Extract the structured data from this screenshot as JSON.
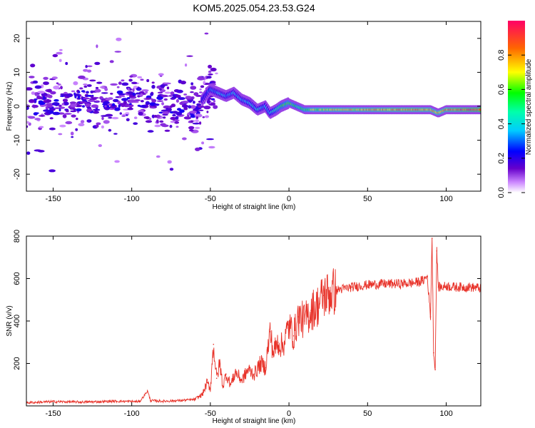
{
  "figure_title": "KOM5.2025.054.23.53.G24",
  "chart_data": [
    {
      "type": "heatmap",
      "title": "KOM5.2025.054.23.53.G24",
      "xlabel": "Height of straight line (km)",
      "ylabel": "Frequency (Hz)",
      "xlim": [
        -167,
        122
      ],
      "ylim": [
        -25,
        25
      ],
      "xticks": [
        -150,
        -100,
        -50,
        0,
        50,
        100
      ],
      "yticks": [
        -20,
        -10,
        0,
        10,
        20
      ],
      "grid": false,
      "ridge": {
        "description": "estimated center frequency of the dominant spectral ridge vs height",
        "x": [
          -165,
          -150,
          -140,
          -130,
          -120,
          -110,
          -100,
          -90,
          -80,
          -70,
          -60,
          -55,
          -50,
          -45,
          -40,
          -35,
          -30,
          -25,
          -20,
          -15,
          -12,
          -8,
          -5,
          0,
          5,
          10,
          20,
          40,
          60,
          80,
          90,
          95,
          100,
          110,
          120
        ],
        "y": [
          0,
          1,
          0,
          2,
          0,
          1,
          3,
          1,
          0,
          1,
          0,
          2,
          5,
          4,
          3,
          4,
          2,
          1,
          -1,
          0,
          -2,
          -1,
          0,
          1,
          0,
          -1,
          -1,
          -1,
          -1,
          -1,
          -1,
          -2,
          -1,
          -1,
          -1
        ],
        "amplitude": [
          0.1,
          0.1,
          0.1,
          0.1,
          0.1,
          0.1,
          0.1,
          0.1,
          0.1,
          0.12,
          0.15,
          0.2,
          0.3,
          0.35,
          0.35,
          0.35,
          0.35,
          0.4,
          0.4,
          0.35,
          0.4,
          0.5,
          0.55,
          0.6,
          0.55,
          0.6,
          0.7,
          0.75,
          0.8,
          0.85,
          0.8,
          0.75,
          0.85,
          0.9,
          0.95
        ]
      },
      "colorbar": {
        "label": "Normalized spectral amplitude",
        "range": [
          0,
          1
        ],
        "ticks": [
          "0.0",
          "0.2",
          "0.4",
          "0.6",
          "0.8"
        ]
      }
    },
    {
      "type": "line",
      "xlabel": "Height of straight line (km)",
      "ylabel": "SNR (v/v)",
      "xlim": [
        -167,
        122
      ],
      "ylim": [
        0,
        800
      ],
      "xticks": [
        -150,
        -100,
        -50,
        0,
        50,
        100
      ],
      "yticks": [
        200,
        400,
        600,
        800
      ],
      "series": [
        {
          "name": "SNR",
          "color": "#e8332a",
          "x": [
            -167,
            -150,
            -130,
            -110,
            -95,
            -90,
            -88,
            -80,
            -70,
            -60,
            -55,
            -52,
            -50,
            -48,
            -46,
            -44,
            -42,
            -40,
            -37,
            -34,
            -30,
            -26,
            -22,
            -18,
            -15,
            -12,
            -10,
            -7,
            -4,
            0,
            3,
            6,
            10,
            14,
            18,
            22,
            26,
            30,
            40,
            50,
            60,
            70,
            80,
            85,
            88,
            90,
            91,
            92,
            93,
            94,
            95,
            97,
            100,
            105,
            110,
            115,
            122
          ],
          "y": [
            15,
            20,
            18,
            22,
            20,
            70,
            25,
            22,
            25,
            30,
            55,
            110,
            80,
            290,
            130,
            200,
            90,
            150,
            100,
            160,
            120,
            170,
            150,
            200,
            180,
            350,
            250,
            300,
            280,
            380,
            330,
            420,
            400,
            450,
            470,
            520,
            530,
            545,
            560,
            570,
            575,
            575,
            580,
            590,
            610,
            420,
            790,
            250,
            170,
            730,
            560,
            560,
            565,
            560,
            560,
            560,
            555
          ]
        }
      ]
    }
  ]
}
